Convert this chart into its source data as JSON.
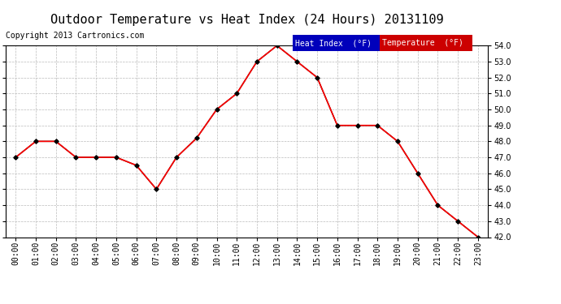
{
  "title": "Outdoor Temperature vs Heat Index (24 Hours) 20131109",
  "copyright": "Copyright 2013 Cartronics.com",
  "x_labels": [
    "00:00",
    "01:00",
    "02:00",
    "03:00",
    "04:00",
    "05:00",
    "06:00",
    "07:00",
    "08:00",
    "09:00",
    "10:00",
    "11:00",
    "12:00",
    "13:00",
    "14:00",
    "15:00",
    "16:00",
    "17:00",
    "18:00",
    "19:00",
    "20:00",
    "21:00",
    "22:00",
    "23:00"
  ],
  "temperature": [
    47.0,
    48.0,
    48.0,
    47.0,
    47.0,
    47.0,
    46.5,
    45.0,
    47.0,
    48.2,
    50.0,
    51.0,
    53.0,
    54.0,
    53.0,
    52.0,
    49.0,
    49.0,
    49.0,
    48.0,
    46.0,
    44.0,
    43.0,
    42.0
  ],
  "heat_index": [
    47.0,
    48.0,
    48.0,
    47.0,
    47.0,
    47.0,
    46.5,
    45.0,
    47.0,
    48.2,
    50.0,
    51.0,
    53.0,
    54.0,
    53.0,
    52.0,
    49.0,
    49.0,
    49.0,
    48.0,
    46.0,
    44.0,
    43.0,
    42.0
  ],
  "ylim": [
    42.0,
    54.0
  ],
  "yticks": [
    42.0,
    43.0,
    44.0,
    45.0,
    46.0,
    47.0,
    48.0,
    49.0,
    50.0,
    51.0,
    52.0,
    53.0,
    54.0
  ],
  "temp_color": "#ff0000",
  "heat_index_color": "#000000",
  "bg_color": "#ffffff",
  "grid_color": "#bbbbbb",
  "legend_heat_bg": "#0000bb",
  "legend_temp_bg": "#cc0000",
  "title_fontsize": 11,
  "copyright_fontsize": 7,
  "axis_fontsize": 7,
  "legend_fontsize": 7
}
